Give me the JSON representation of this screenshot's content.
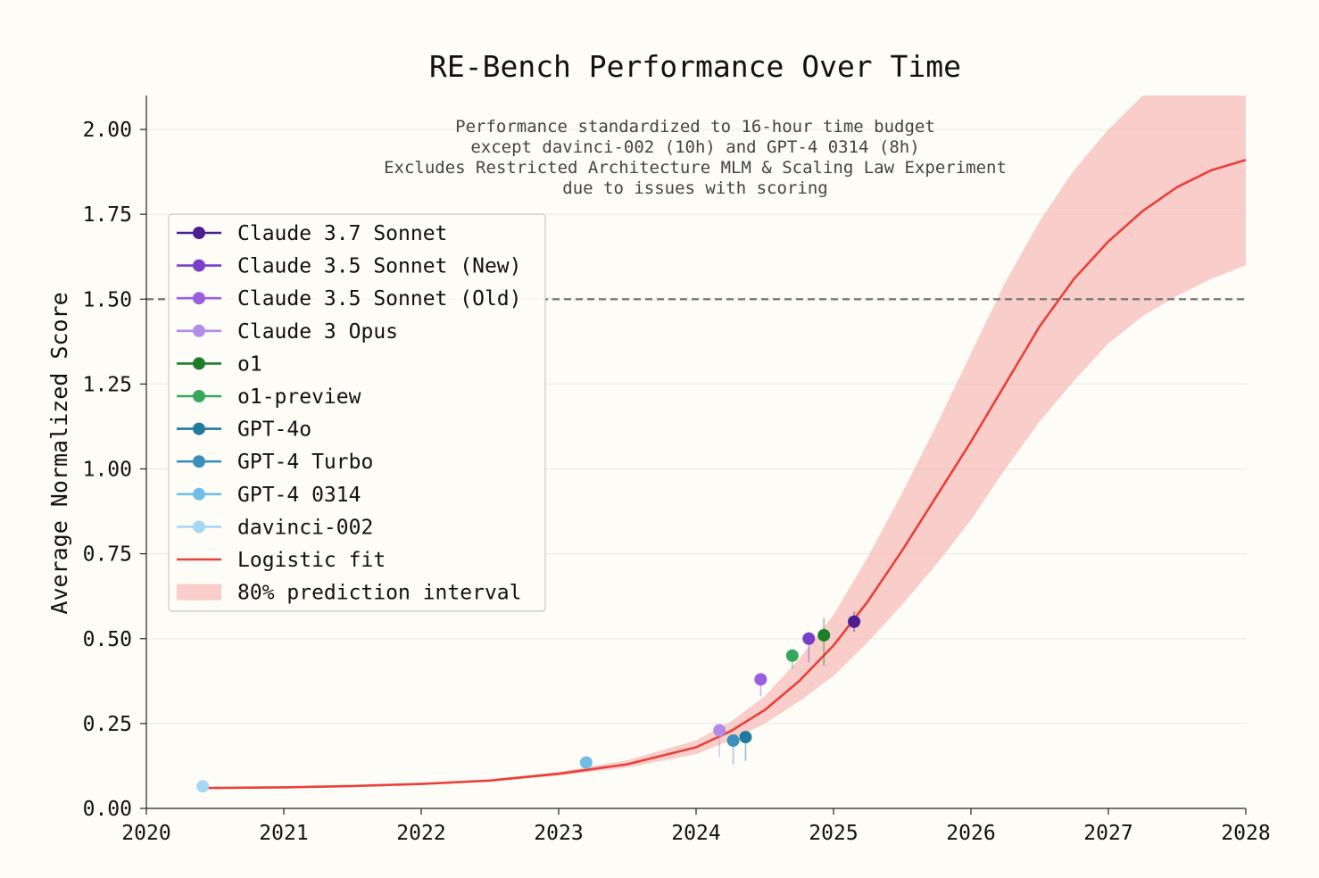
{
  "chart_data": {
    "type": "scatter",
    "title": "RE-Bench Performance Over Time",
    "annotation_lines": [
      "Performance standardized to 16-hour time budget",
      "except davinci-002 (10h) and GPT-4 0314 (8h)",
      "Excludes Restricted Architecture MLM & Scaling Law Experiment",
      "due to issues with scoring"
    ],
    "xlabel": "",
    "ylabel": "Average Normalized Score",
    "xlim": [
      2020,
      2028
    ],
    "ylim": [
      0,
      2.1
    ],
    "xticks": [
      2020,
      2021,
      2022,
      2023,
      2024,
      2025,
      2026,
      2027,
      2028
    ],
    "xtick_labels": [
      "2020",
      "2021",
      "2022",
      "2023",
      "2024",
      "2025",
      "2026",
      "2027",
      "2028"
    ],
    "yticks": [
      0,
      0.25,
      0.5,
      0.75,
      1.0,
      1.25,
      1.5,
      1.75,
      2.0
    ],
    "ytick_labels": [
      "0.00",
      "0.25",
      "0.50",
      "0.75",
      "1.00",
      "1.25",
      "1.50",
      "1.75",
      "2.00"
    ],
    "grid": true,
    "legend_position": "upper-left",
    "reference_line": {
      "y": 1.5,
      "style": "dashed",
      "color": "#777777"
    },
    "series": [
      {
        "name": "Claude 3.7 Sonnet",
        "color": "#4b1f8f",
        "x": 2025.15,
        "y": 0.55,
        "err_low": 0.03,
        "err_high": 0.03
      },
      {
        "name": "Claude 3.5 Sonnet (New)",
        "color": "#7a3fc9",
        "x": 2024.82,
        "y": 0.5,
        "err_low": 0.07,
        "err_high": 0.02
      },
      {
        "name": "Claude 3.5 Sonnet (Old)",
        "color": "#9a5fe0",
        "x": 2024.47,
        "y": 0.38,
        "err_low": 0.05,
        "err_high": 0.01
      },
      {
        "name": "Claude 3 Opus",
        "color": "#b28ce8",
        "x": 2024.17,
        "y": 0.23,
        "err_low": 0.08,
        "err_high": 0.0
      },
      {
        "name": "o1",
        "color": "#1e7d2a",
        "x": 2024.93,
        "y": 0.51,
        "err_low": 0.09,
        "err_high": 0.05
      },
      {
        "name": "o1-preview",
        "color": "#35a85e",
        "x": 2024.7,
        "y": 0.45,
        "err_low": 0.04,
        "err_high": 0.01
      },
      {
        "name": "GPT-4o",
        "color": "#1f7a9c",
        "x": 2024.36,
        "y": 0.21,
        "err_low": 0.07,
        "err_high": 0.0
      },
      {
        "name": "GPT-4 Turbo",
        "color": "#3a8fbd",
        "x": 2024.27,
        "y": 0.2,
        "err_low": 0.07,
        "err_high": 0.0
      },
      {
        "name": "GPT-4 0314",
        "color": "#72bde6",
        "x": 2023.2,
        "y": 0.135,
        "err_low": 0.02,
        "err_high": 0.0
      },
      {
        "name": "davinci-002",
        "color": "#a6d7f5",
        "x": 2020.41,
        "y": 0.065,
        "err_low": 0.0,
        "err_high": 0.0
      }
    ],
    "fit": {
      "name": "Logistic fit",
      "color": "#e8403a",
      "x": [
        2020.4,
        2021,
        2021.5,
        2022,
        2022.5,
        2023,
        2023.5,
        2024,
        2024.25,
        2024.5,
        2024.75,
        2025,
        2025.25,
        2025.5,
        2025.75,
        2026,
        2026.25,
        2026.5,
        2026.75,
        2027,
        2027.25,
        2027.5,
        2027.75,
        2028
      ],
      "y": [
        0.06,
        0.062,
        0.066,
        0.072,
        0.082,
        0.102,
        0.13,
        0.18,
        0.227,
        0.29,
        0.375,
        0.48,
        0.61,
        0.76,
        0.92,
        1.08,
        1.25,
        1.42,
        1.56,
        1.67,
        1.76,
        1.83,
        1.88,
        1.91
      ]
    },
    "prediction_interval": {
      "name": "80% prediction interval",
      "color": "#f7b3b0",
      "x": [
        2020.4,
        2021,
        2021.5,
        2022,
        2022.5,
        2023,
        2023.5,
        2024,
        2024.25,
        2024.5,
        2024.75,
        2025,
        2025.25,
        2025.5,
        2025.75,
        2026,
        2026.25,
        2026.5,
        2026.75,
        2027,
        2027.25,
        2027.5,
        2027.75,
        2028
      ],
      "lower": [
        0.06,
        0.062,
        0.066,
        0.071,
        0.079,
        0.097,
        0.12,
        0.16,
        0.2,
        0.25,
        0.315,
        0.39,
        0.49,
        0.6,
        0.72,
        0.85,
        1.0,
        1.14,
        1.26,
        1.37,
        1.45,
        1.51,
        1.56,
        1.6
      ],
      "upper": [
        0.06,
        0.063,
        0.068,
        0.074,
        0.086,
        0.108,
        0.142,
        0.2,
        0.255,
        0.33,
        0.44,
        0.57,
        0.74,
        0.93,
        1.13,
        1.34,
        1.55,
        1.73,
        1.88,
        2.0,
        2.1,
        2.1,
        2.1,
        2.1
      ]
    }
  }
}
